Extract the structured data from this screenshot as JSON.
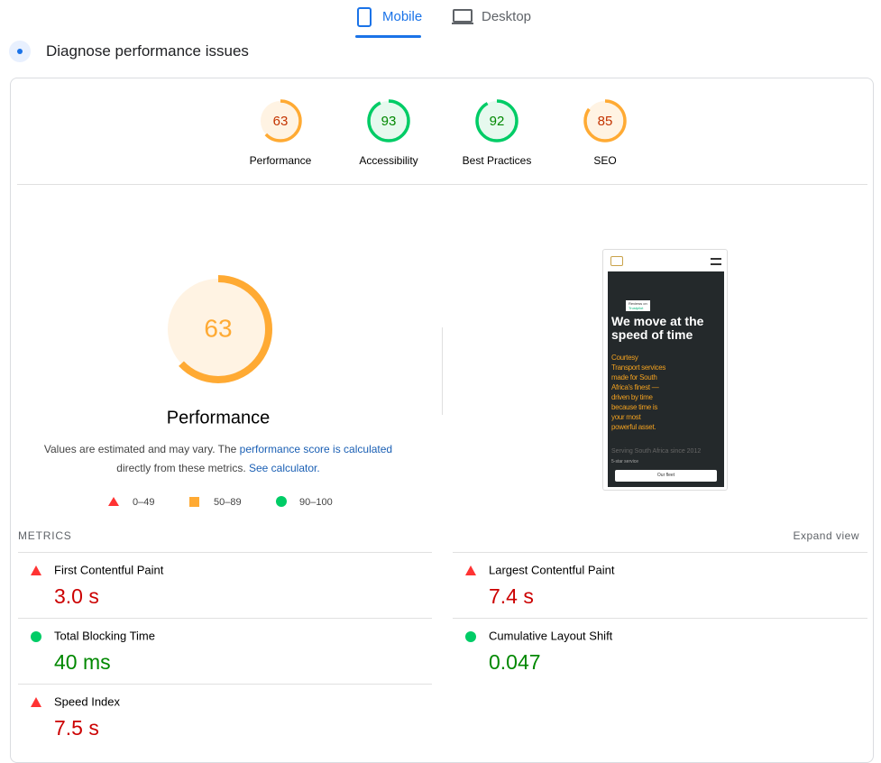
{
  "tabs": [
    "Mobile",
    "Desktop"
  ],
  "heading": "Diagnose performance issues",
  "scores": [
    {
      "label": "Performance",
      "value": 63,
      "color": "#ffaa33"
    },
    {
      "label": "Accessibility",
      "value": 93,
      "color": "#00cc66"
    },
    {
      "label": "Best Practices",
      "value": 92,
      "color": "#00cc66"
    },
    {
      "label": "SEO",
      "value": 85,
      "color": "#ffaa33"
    }
  ],
  "description": {
    "before": "Values are estimated and may vary. The ",
    "link1": "performance score is calculated",
    "middle": "directly from these metrics. ",
    "link2": "See calculator."
  },
  "legend": [
    "0–49",
    "50–89",
    "90–100"
  ],
  "screenshot": {
    "badge": "Reviews on",
    "badge_brand": "Trustpilot",
    "headline": "We move at the speed of time",
    "body": "Courtesy Transport services made for South Africa's finest — driven by time because time is your most powerful asset.",
    "since": "Serving South Africa since 2012",
    "stars": "5-star service",
    "button": "Our fleet"
  },
  "metrics_title": "METRICS",
  "expand": "Expand view",
  "metrics": [
    {
      "name": "First Contentful Paint",
      "value": "3.0 s",
      "color": "#cc0000",
      "icon": "triangle"
    },
    {
      "name": "Largest Contentful Paint",
      "value": "7.4 s",
      "color": "#cc0000",
      "icon": "triangle"
    },
    {
      "name": "Total Blocking Time",
      "value": "40 ms",
      "color": "#008800",
      "icon": "circle"
    },
    {
      "name": "Cumulative Layout Shift",
      "value": "0.047",
      "color": "#008800",
      "icon": "circle"
    },
    {
      "name": "Speed Index",
      "value": "7.5 s",
      "color": "#cc0000",
      "icon": "triangle"
    }
  ]
}
